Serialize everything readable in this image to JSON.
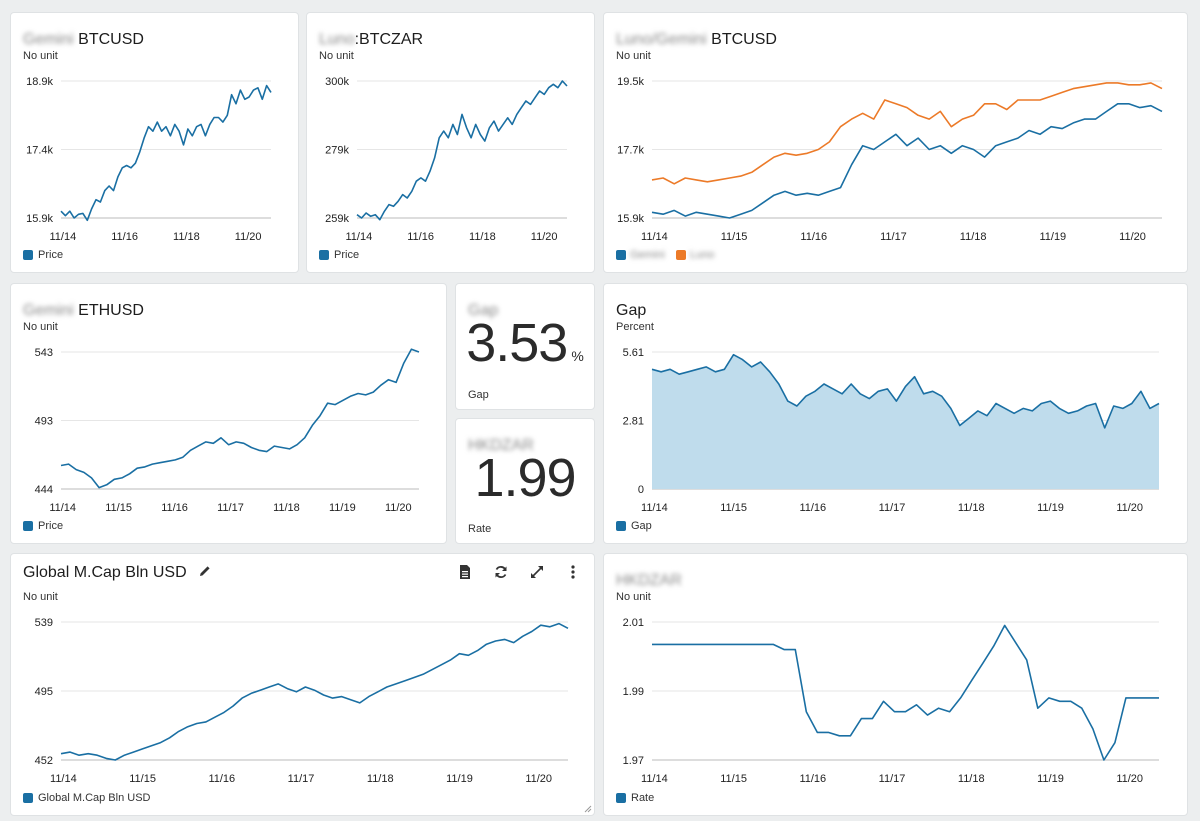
{
  "colors": {
    "blue": "#1a6fa3",
    "orange": "#ec7a28",
    "area_fill": "#bfdcec",
    "grid": "#e6e6e6"
  },
  "icons": {
    "edit": "pencil-icon",
    "doc": "document-icon",
    "refresh": "refresh-icon",
    "expand": "expand-icon",
    "more": "more-vertical-icon"
  },
  "panels": {
    "btcusd": {
      "blurred": "Gemini",
      "title": "BTCUSD",
      "unit": "No unit",
      "legend": "Price"
    },
    "btczar": {
      "blurred": "Luno",
      "title": ":BTCZAR",
      "unit": "No unit",
      "legend": "Price"
    },
    "lunogem": {
      "blurred": "Luno/Gemini",
      "title": "BTCUSD",
      "unit": "No unit",
      "legend": [
        "Gemini",
        "Luno"
      ]
    },
    "ethusd": {
      "blurred": "Gemini",
      "title": "ETHUSD",
      "unit": "No unit",
      "legend": "Price"
    },
    "gapstat": {
      "blurred": "Gap",
      "value": "3.53",
      "unit": "%",
      "label": "Gap"
    },
    "ratestat": {
      "blurred": "HKDZAR",
      "value": "1.99",
      "label": "Rate"
    },
    "gap": {
      "title": "Gap",
      "unit": "Percent",
      "legend": "Gap"
    },
    "mcap": {
      "title": "Global M.Cap Bln USD",
      "unit": "No unit",
      "legend": "Global M.Cap Bln USD"
    },
    "hkdzar": {
      "blurred": "HKDZAR",
      "unit": "No unit",
      "legend": "Rate"
    }
  },
  "chart_data": [
    {
      "id": "btcusd",
      "type": "line",
      "x_ticks": [
        "11/14",
        "11/16",
        "11/18",
        "11/20"
      ],
      "y_ticks": [
        "15.9k",
        "17.4k",
        "18.9k"
      ],
      "ylim": [
        15900,
        18900
      ],
      "series": [
        {
          "values": [
            16050,
            15950,
            16050,
            15900,
            15980,
            16000,
            15850,
            16100,
            16300,
            16250,
            16500,
            16600,
            16500,
            16800,
            17000,
            17050,
            17000,
            17100,
            17350,
            17650,
            17900,
            17800,
            18000,
            17800,
            17900,
            17700,
            17950,
            17800,
            17500,
            17850,
            17700,
            17900,
            17950,
            17700,
            17950,
            18100,
            18100,
            18000,
            18150,
            18600,
            18400,
            18700,
            18500,
            18550,
            18700,
            18750,
            18500,
            18800,
            18650
          ]
        }
      ]
    },
    {
      "id": "btczar",
      "type": "line",
      "x_ticks": [
        "11/14",
        "11/16",
        "11/18",
        "11/20"
      ],
      "y_ticks": [
        "259k",
        "279k",
        "300k"
      ],
      "ylim": [
        259000,
        300000
      ],
      "series": [
        {
          "values": [
            260000,
            259000,
            260500,
            259500,
            260000,
            258500,
            261000,
            263000,
            262500,
            264000,
            266000,
            265000,
            267000,
            270000,
            271000,
            270000,
            273000,
            277000,
            283000,
            285000,
            283000,
            287000,
            284000,
            290000,
            286000,
            283000,
            287000,
            284000,
            282000,
            286000,
            288000,
            285000,
            287000,
            289000,
            287000,
            290000,
            292000,
            294000,
            293000,
            295000,
            297000,
            296000,
            298000,
            299000,
            298000,
            300000,
            298500
          ]
        }
      ]
    },
    {
      "id": "lunogem",
      "type": "line",
      "x_ticks": [
        "11/14",
        "11/15",
        "11/16",
        "11/17",
        "11/18",
        "11/19",
        "11/20"
      ],
      "y_ticks": [
        "15.9k",
        "17.7k",
        "19.5k"
      ],
      "ylim": [
        15900,
        19500
      ],
      "series": [
        {
          "name": "Gemini",
          "values": [
            16050,
            16000,
            16100,
            15950,
            16050,
            16000,
            15950,
            15900,
            16000,
            16100,
            16300,
            16500,
            16600,
            16500,
            16550,
            16500,
            16600,
            16700,
            17300,
            17800,
            17700,
            17900,
            18100,
            17800,
            18000,
            17700,
            17800,
            17600,
            17800,
            17700,
            17500,
            17800,
            17900,
            18000,
            18200,
            18100,
            18300,
            18250,
            18400,
            18500,
            18500,
            18700,
            18900,
            18900,
            18800,
            18850,
            18700
          ]
        },
        {
          "name": "Luno",
          "values": [
            16900,
            16950,
            16800,
            16950,
            16900,
            16850,
            16900,
            16950,
            17000,
            17100,
            17300,
            17500,
            17600,
            17550,
            17600,
            17700,
            17900,
            18300,
            18500,
            18650,
            18500,
            19000,
            18900,
            18800,
            18600,
            18500,
            18700,
            18300,
            18500,
            18600,
            18900,
            18900,
            18750,
            19000,
            19000,
            19000,
            19100,
            19200,
            19300,
            19350,
            19400,
            19450,
            19450,
            19400,
            19400,
            19450,
            19300
          ]
        }
      ]
    },
    {
      "id": "ethusd",
      "type": "line",
      "x_ticks": [
        "11/14",
        "11/15",
        "11/16",
        "11/17",
        "11/18",
        "11/19",
        "11/20"
      ],
      "y_ticks": [
        "444",
        "493",
        "543"
      ],
      "ylim": [
        444,
        543
      ],
      "series": [
        {
          "values": [
            461,
            462,
            458,
            456,
            452,
            445,
            447,
            451,
            452,
            455,
            459,
            460,
            462,
            463,
            464,
            465,
            467,
            472,
            475,
            478,
            477,
            481,
            476,
            478,
            477,
            474,
            472,
            471,
            475,
            474,
            473,
            476,
            481,
            490,
            497,
            506,
            505,
            508,
            511,
            513,
            512,
            514,
            519,
            523,
            521,
            535,
            545,
            543
          ]
        }
      ]
    },
    {
      "id": "gap",
      "type": "area",
      "x_ticks": [
        "11/14",
        "11/15",
        "11/16",
        "11/17",
        "11/18",
        "11/19",
        "11/20"
      ],
      "y_ticks": [
        "0",
        "2.81",
        "5.61"
      ],
      "ylim": [
        0,
        5.61
      ],
      "series": [
        {
          "name": "Gap",
          "values": [
            4.9,
            4.8,
            4.9,
            4.7,
            4.8,
            4.9,
            5.0,
            4.8,
            4.9,
            5.5,
            5.3,
            5.0,
            5.2,
            4.8,
            4.3,
            3.6,
            3.4,
            3.8,
            4.0,
            4.3,
            4.1,
            3.9,
            4.3,
            3.9,
            3.7,
            4.0,
            4.1,
            3.6,
            4.2,
            4.6,
            3.9,
            4.0,
            3.8,
            3.3,
            2.6,
            2.9,
            3.2,
            3.0,
            3.5,
            3.3,
            3.1,
            3.3,
            3.2,
            3.5,
            3.6,
            3.3,
            3.1,
            3.2,
            3.4,
            3.5,
            2.5,
            3.4,
            3.3,
            3.5,
            4.0,
            3.3,
            3.5
          ]
        }
      ]
    },
    {
      "id": "mcap",
      "type": "line",
      "x_ticks": [
        "11/14",
        "11/15",
        "11/16",
        "11/17",
        "11/18",
        "11/19",
        "11/20"
      ],
      "y_ticks": [
        "452",
        "495",
        "539"
      ],
      "ylim": [
        452,
        539
      ],
      "series": [
        {
          "values": [
            456,
            457,
            455,
            456,
            455,
            453,
            452,
            455,
            457,
            459,
            461,
            463,
            466,
            470,
            473,
            475,
            476,
            479,
            482,
            486,
            491,
            494,
            496,
            498,
            500,
            497,
            495,
            498,
            496,
            493,
            491,
            492,
            490,
            488,
            492,
            495,
            498,
            500,
            502,
            504,
            506,
            509,
            512,
            515,
            519,
            518,
            521,
            525,
            527,
            528,
            526,
            530,
            533,
            537,
            536,
            538,
            535
          ]
        }
      ]
    },
    {
      "id": "hkdzar",
      "type": "line",
      "x_ticks": [
        "11/14",
        "11/15",
        "11/16",
        "11/17",
        "11/18",
        "11/19",
        "11/20"
      ],
      "y_ticks": [
        "1.97",
        "1.99",
        "2.01"
      ],
      "ylim": [
        1.97,
        2.01
      ],
      "series": [
        {
          "values": [
            2.0035,
            2.0035,
            2.0035,
            2.0035,
            2.0035,
            2.0035,
            2.0035,
            2.0035,
            2.0035,
            2.0035,
            2.0035,
            2.0035,
            2.002,
            2.002,
            1.984,
            1.978,
            1.978,
            1.977,
            1.977,
            1.982,
            1.982,
            1.987,
            1.984,
            1.984,
            1.986,
            1.983,
            1.985,
            1.984,
            1.988,
            1.993,
            1.998,
            2.003,
            2.009,
            2.004,
            1.999,
            1.985,
            1.988,
            1.987,
            1.987,
            1.985,
            1.979,
            1.97,
            1.975,
            1.988,
            1.988,
            1.988,
            1.988
          ]
        }
      ]
    }
  ]
}
